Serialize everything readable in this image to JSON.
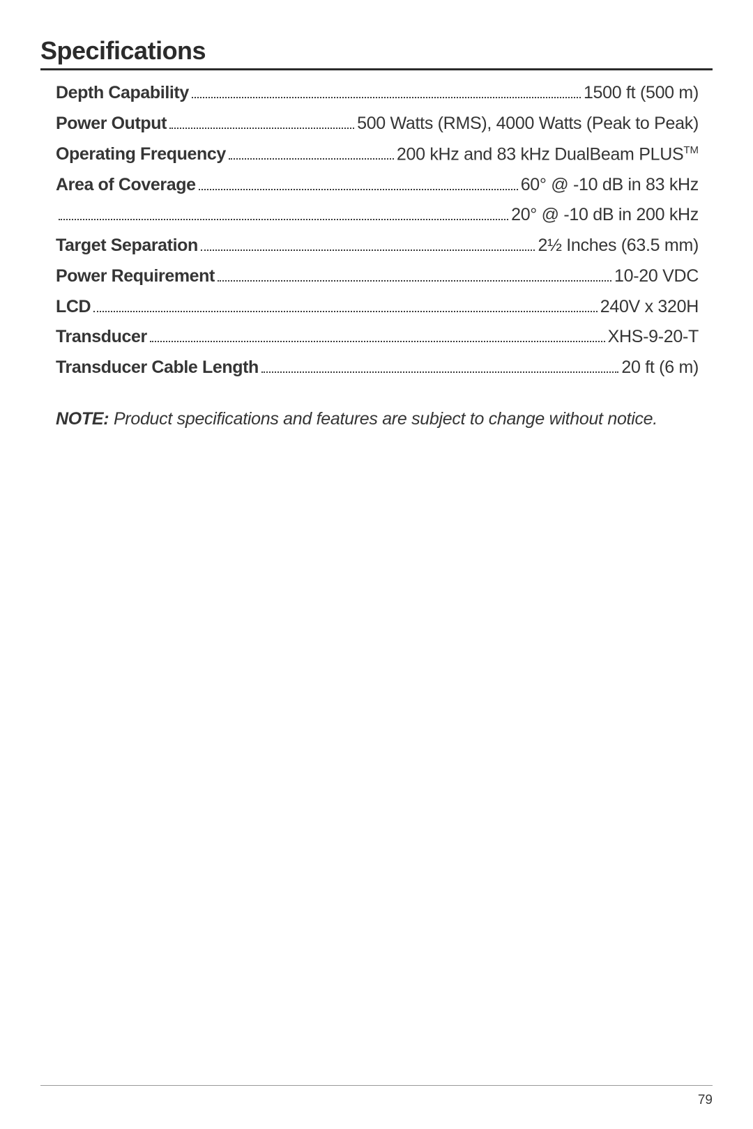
{
  "title": "Specifications",
  "specs": [
    {
      "label": "Depth Capability",
      "value": "1500 ft (500 m)"
    },
    {
      "label": "Power Output",
      "value": "500 Watts (RMS), 4000 Watts (Peak to Peak)"
    },
    {
      "label": "Operating Frequency",
      "value": "200 kHz and 83 kHz DualBeam PLUS",
      "tm": true
    },
    {
      "label": "Area of Coverage",
      "value": "60° @ -10 dB in 83 kHz"
    },
    {
      "label": "",
      "value": "20° @ -10 dB in 200 kHz"
    },
    {
      "label": "Target Separation",
      "value": "2½ Inches (63.5 mm)"
    },
    {
      "label": "Power Requirement",
      "value": "10-20 VDC"
    },
    {
      "label": "LCD",
      "value": "240V x 320H"
    },
    {
      "label": "Transducer",
      "value": "XHS-9-20-T"
    },
    {
      "label": "Transducer Cable Length",
      "value": "20 ft (6 m)"
    }
  ],
  "note": {
    "label": "NOTE:",
    "text": "Product specifications and features are subject to change without notice."
  },
  "pageNumber": "79"
}
